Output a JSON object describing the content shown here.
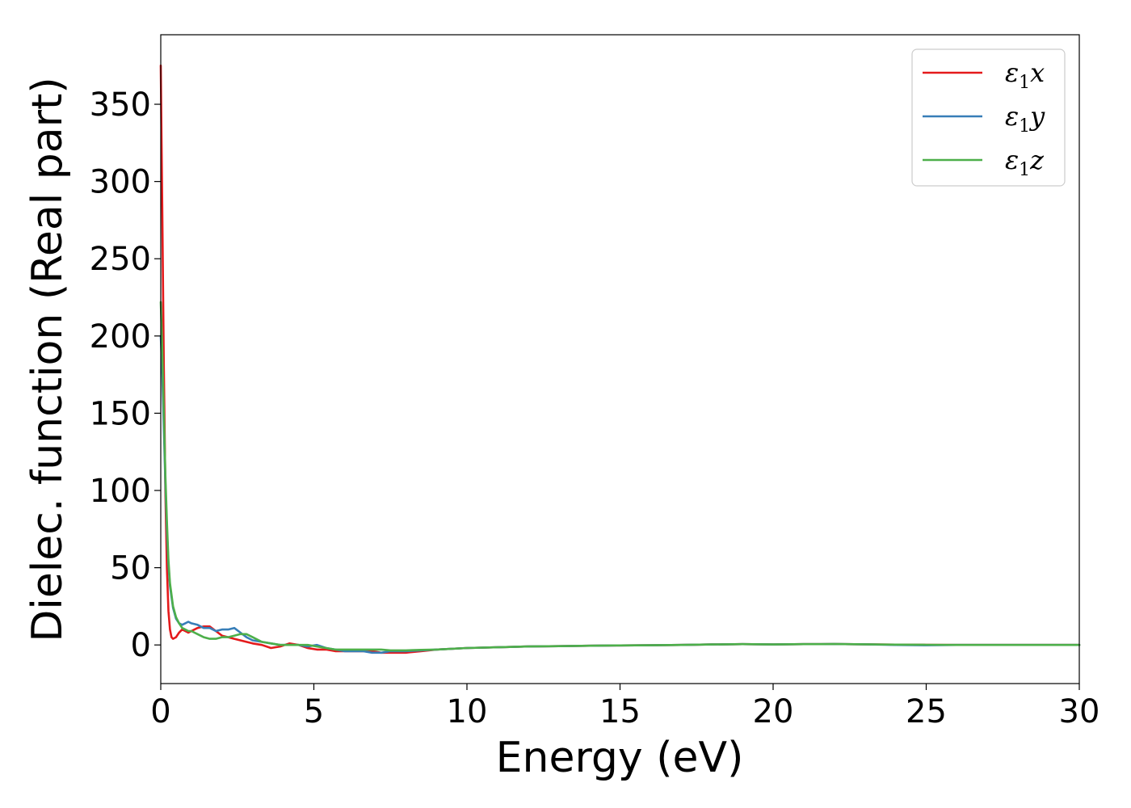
{
  "chart_data": {
    "type": "line",
    "title": "",
    "xlabel": "Energy (eV)",
    "ylabel": "Dielec. function (Real part)",
    "xlim": [
      0,
      30
    ],
    "ylim": [
      -25,
      395
    ],
    "xticks": [
      0,
      5,
      10,
      15,
      20,
      25,
      30
    ],
    "xtick_labels": [
      "0",
      "5",
      "10",
      "15",
      "20",
      "25",
      "30"
    ],
    "yticks": [
      0,
      50,
      100,
      150,
      200,
      250,
      300,
      350
    ],
    "ytick_labels": [
      "0",
      "50",
      "100",
      "150",
      "200",
      "250",
      "300",
      "350"
    ],
    "grid": false,
    "legend_position": "top-right",
    "series": [
      {
        "name": "ε₁x",
        "legend_symbol": "ε",
        "legend_sub": "1",
        "legend_axis": "x",
        "color": "#e41a1c",
        "x": [
          0,
          0.05,
          0.1,
          0.15,
          0.2,
          0.25,
          0.3,
          0.35,
          0.4,
          0.5,
          0.6,
          0.7,
          0.8,
          0.9,
          1.0,
          1.2,
          1.4,
          1.6,
          1.8,
          2.0,
          2.2,
          2.4,
          2.6,
          2.8,
          3.0,
          3.3,
          3.6,
          3.9,
          4.2,
          4.5,
          4.8,
          5.1,
          5.4,
          5.7,
          6.0,
          6.3,
          6.6,
          6.9,
          7.2,
          7.5,
          7.8,
          8.0,
          8.5,
          9.0,
          10,
          11,
          12,
          13,
          14,
          15,
          16,
          17,
          18,
          19,
          20,
          21,
          22,
          23,
          24,
          25,
          26,
          27,
          28,
          29,
          30
        ],
        "y": [
          375,
          280,
          180,
          100,
          50,
          22,
          10,
          5,
          4,
          5,
          8,
          10,
          9,
          8,
          9,
          11,
          12,
          12,
          9,
          6,
          5,
          4,
          3,
          2,
          1,
          0,
          -2,
          -1,
          1,
          0,
          -2,
          -3,
          -3,
          -4,
          -4,
          -4,
          -4,
          -4,
          -5,
          -5,
          -5,
          -5,
          -4,
          -3,
          -2,
          -1.5,
          -1,
          -0.8,
          -0.5,
          -0.3,
          -0.2,
          0,
          0.3,
          0.5,
          0.3,
          0.5,
          0.6,
          0.4,
          0.2,
          0.1,
          0,
          0,
          0,
          0,
          0
        ]
      },
      {
        "name": "ε₁y",
        "legend_symbol": "ε",
        "legend_sub": "1",
        "legend_axis": "y",
        "color": "#377eb8",
        "x": [
          0,
          0.05,
          0.1,
          0.15,
          0.2,
          0.25,
          0.3,
          0.4,
          0.5,
          0.6,
          0.7,
          0.8,
          0.9,
          1.0,
          1.2,
          1.4,
          1.6,
          1.8,
          2.0,
          2.2,
          2.4,
          2.6,
          2.8,
          3.0,
          3.3,
          3.6,
          3.9,
          4.2,
          4.5,
          4.8,
          5.1,
          5.4,
          5.7,
          6.0,
          6.3,
          6.6,
          6.9,
          7.2,
          7.5,
          7.8,
          8.0,
          8.5,
          9.0,
          10,
          11,
          12,
          13,
          14,
          15,
          16,
          17,
          18,
          19,
          20,
          21,
          22,
          23,
          24,
          25,
          26,
          27,
          28,
          29,
          30
        ],
        "y": [
          200,
          175,
          140,
          105,
          75,
          52,
          38,
          24,
          17,
          14,
          13,
          14,
          15,
          14,
          13,
          11,
          11,
          9,
          10,
          10,
          11,
          8,
          5,
          3,
          2,
          1,
          0,
          0,
          0,
          -1,
          0,
          -2,
          -3,
          -4,
          -4,
          -4,
          -5,
          -5,
          -4,
          -4,
          -4,
          -3.5,
          -3,
          -2,
          -1.5,
          -1,
          -0.8,
          -0.5,
          -0.3,
          -0.2,
          0,
          0.3,
          0.5,
          0.3,
          0.5,
          0.6,
          0.4,
          0,
          -0.2,
          0,
          0,
          0,
          0,
          0
        ]
      },
      {
        "name": "ε₁z",
        "legend_symbol": "ε",
        "legend_sub": "1",
        "legend_axis": "z",
        "color": "#4daf4a",
        "x": [
          0,
          0.05,
          0.1,
          0.15,
          0.2,
          0.25,
          0.3,
          0.4,
          0.5,
          0.6,
          0.7,
          0.8,
          0.9,
          1.0,
          1.2,
          1.4,
          1.6,
          1.8,
          2.0,
          2.2,
          2.4,
          2.6,
          2.8,
          3.0,
          3.3,
          3.6,
          3.9,
          4.2,
          4.5,
          4.8,
          5.1,
          5.4,
          5.7,
          6.0,
          6.3,
          6.6,
          6.9,
          7.2,
          7.5,
          7.8,
          8.0,
          8.5,
          9.0,
          10,
          11,
          12,
          13,
          14,
          15,
          16,
          17,
          18,
          19,
          20,
          21,
          22,
          23,
          24,
          25,
          26,
          27,
          28,
          29,
          30
        ],
        "y": [
          222,
          190,
          150,
          110,
          80,
          55,
          40,
          25,
          18,
          14,
          11,
          10,
          9,
          9,
          7,
          5,
          4,
          4,
          5,
          5,
          6,
          7,
          7,
          5,
          2,
          1,
          0,
          0,
          0,
          0,
          -1,
          -2,
          -3,
          -3,
          -3,
          -3,
          -3,
          -3,
          -3.5,
          -3.5,
          -3.5,
          -3.2,
          -3,
          -2,
          -1.5,
          -1,
          -0.8,
          -0.5,
          -0.3,
          -0.2,
          0,
          0.3,
          0.5,
          0.3,
          0.5,
          0.6,
          0.4,
          0.2,
          0.1,
          0,
          0,
          0,
          0,
          0
        ]
      }
    ]
  }
}
